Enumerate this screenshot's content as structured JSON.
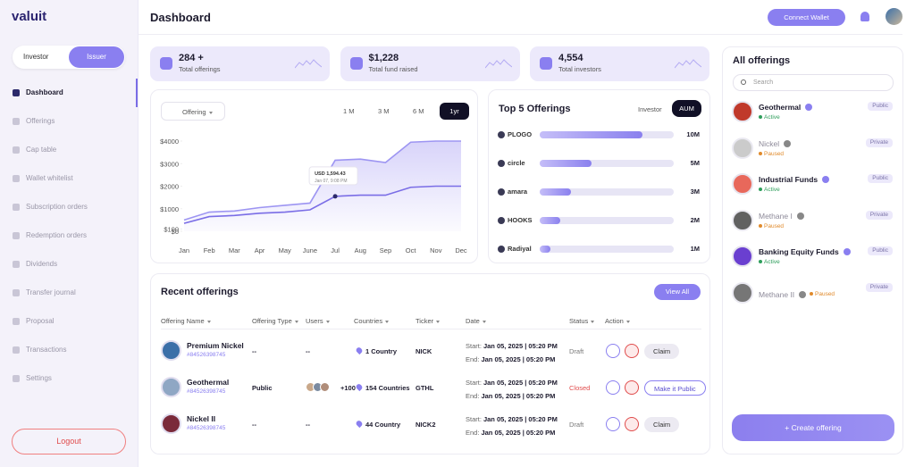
{
  "brand": "valuit",
  "header": {
    "title": "Dashboard",
    "connect": "Connect Wallet"
  },
  "sidebar": {
    "toggle": [
      "Investor",
      "Issuer"
    ],
    "nav": [
      "Dashboard",
      "Offerings",
      "Cap table",
      "Wallet whitelist",
      "Subscription orders",
      "Redemption orders",
      "Dividends",
      "Transfer journal",
      "Proposal",
      "Transactions",
      "Settings"
    ],
    "logout": "Logout"
  },
  "stats": [
    {
      "value": "284 +",
      "label": "Total offerings"
    },
    {
      "value": "$1,228",
      "label": "Total fund raised"
    },
    {
      "value": "4,554",
      "label": "Total investors"
    }
  ],
  "chart_data": [
    {
      "type": "line",
      "filter": "Offering",
      "ranges": [
        "1 M",
        "3 M",
        "6 M",
        "1yr"
      ],
      "categories": [
        "Jan",
        "Feb",
        "Mar",
        "Apr",
        "May",
        "June",
        "Jul",
        "Aug",
        "Sep",
        "Oct",
        "Nov",
        "Dec"
      ],
      "series": [
        {
          "color": "#9d95f2",
          "values": [
            500,
            850,
            900,
            1050,
            1150,
            1250,
            3150,
            3200,
            3050,
            3950,
            4000,
            4000
          ]
        },
        {
          "color": "#7a6de6",
          "values": [
            350,
            650,
            700,
            800,
            850,
            950,
            1550,
            1600,
            1600,
            1950,
            2000,
            2000
          ]
        }
      ],
      "ylim": [
        0,
        4000
      ],
      "yticks": [
        {
          "value": 0,
          "label": "$0"
        },
        {
          "value": 100,
          "label": "$100"
        },
        {
          "value": 1000,
          "label": "$1000"
        },
        {
          "value": 2000,
          "label": "$2000"
        },
        {
          "value": 3000,
          "label": "$3000"
        },
        {
          "value": 4000,
          "label": "$4000"
        }
      ],
      "annotations": [
        "USD 1,594.43",
        "Jan 07, 9:08 PM"
      ]
    },
    {
      "type": "bar",
      "title": "Top 5 Offerings",
      "tabs": [
        "Investor",
        "AUM"
      ],
      "categories": [
        "PLOGO",
        "circle",
        "amara",
        "HOOKS",
        "Radiyal"
      ],
      "values": [
        10,
        5,
        3,
        2,
        1
      ],
      "value_labels": [
        "10M",
        "5M",
        "3M",
        "2M",
        "1M"
      ],
      "color": "#8a80ee",
      "xlim": [
        0,
        13
      ]
    }
  ],
  "recent": {
    "title": "Recent offerings",
    "view_all": "View All",
    "headers": [
      "Offering Name",
      "Offering Type",
      "Users",
      "Countries",
      "Ticker",
      "Date",
      "Status",
      "Action"
    ],
    "start_label": "Start:",
    "end_label": "End:",
    "rows": [
      {
        "name": "Premium Nickel",
        "id": "#84526398745",
        "type": "--",
        "users": "--",
        "country": "1 Country",
        "ticker": "NICK",
        "start": "Jan 05, 2025 | 05:20 PM",
        "end": "Jan 05, 2025 | 05:20 PM",
        "status": "Draft",
        "action": "Claim"
      },
      {
        "name": "Geothermal",
        "id": "#84526398745",
        "type": "Public",
        "users": "+100",
        "country": "154 Countries",
        "ticker": "GTHL",
        "start": "Jan 05, 2025 | 05:20 PM",
        "end": "Jan 05, 2025 | 05:20 PM",
        "status": "Closed",
        "action": "Make it Public"
      },
      {
        "name": "Nickel II",
        "id": "#84526398745",
        "type": "--",
        "users": "--",
        "country": "44 Country",
        "ticker": "NICK2",
        "start": "Jan 05, 2025 | 05:20 PM",
        "end": "Jan 05, 2025 | 05:20 PM",
        "status": "Draft",
        "action": "Claim"
      }
    ]
  },
  "all": {
    "title": "All offerings",
    "search": "Search",
    "create": "+ Create offering",
    "items": [
      {
        "name": "Geothermal",
        "status": "Active",
        "badge": "Public"
      },
      {
        "name": "Nickel",
        "status": "Paused",
        "badge": "Private"
      },
      {
        "name": "Industrial Funds",
        "status": "Active",
        "badge": "Public"
      },
      {
        "name": "Methane I",
        "status": "Paused",
        "badge": "Private"
      },
      {
        "name": "Banking Equity Funds",
        "status": "Active",
        "badge": "Public"
      },
      {
        "name": "Methane II",
        "status": "Paused",
        "badge": "Private"
      }
    ]
  }
}
